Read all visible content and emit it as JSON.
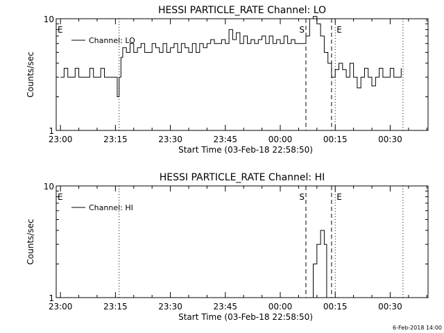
{
  "figure": {
    "footer_date": "6-Feb-2018 14:00"
  },
  "chart_data": [
    {
      "type": "line",
      "title": "HESSI PARTICLE_RATE Channel: LO",
      "xlabel": "Start Time (03-Feb-18 22:58:50)",
      "ylabel": "Counts/sec",
      "yscale": "log",
      "ylim": [
        1,
        10
      ],
      "xlim": [
        "22:58:50",
        "00:40:20"
      ],
      "xticks": [
        "23:00",
        "23:15",
        "23:30",
        "23:45",
        "00:00",
        "00:15",
        "00:30"
      ],
      "yticks": [
        "1",
        "10"
      ],
      "legend": {
        "entries": [
          "Channel: LO"
        ],
        "position": "top-left"
      },
      "markers": [
        {
          "label": "E",
          "time": "22:58:50",
          "style": "dotted"
        },
        {
          "label": "",
          "time": "23:16:00",
          "style": "dotted"
        },
        {
          "label": "S",
          "time": "00:07:00",
          "style": "dashed"
        },
        {
          "label": "",
          "time": "00:14:00",
          "style": "dashed"
        },
        {
          "label": "E",
          "time": "00:15:00",
          "style": "dotted"
        },
        {
          "label": "",
          "time": "00:33:30",
          "style": "dotted"
        }
      ],
      "series": [
        {
          "name": "Channel: LO",
          "x": [
            "23:00",
            "23:01",
            "23:02",
            "23:03",
            "23:04",
            "23:05",
            "23:06",
            "23:07",
            "23:08",
            "23:09",
            "23:10",
            "23:11",
            "23:12",
            "23:13",
            "23:14",
            "23:15",
            "23:15:30",
            "23:16",
            "23:16:30",
            "23:17",
            "23:18",
            "23:19",
            "23:20",
            "23:21",
            "23:22",
            "23:23",
            "23:24",
            "23:25",
            "23:26",
            "23:27",
            "23:28",
            "23:29",
            "23:30",
            "23:31",
            "23:32",
            "23:33",
            "23:34",
            "23:35",
            "23:36",
            "23:37",
            "23:38",
            "23:39",
            "23:40",
            "23:41",
            "23:42",
            "23:43",
            "23:44",
            "23:45",
            "23:46",
            "23:47",
            "23:48",
            "23:49",
            "23:50",
            "23:51",
            "23:52",
            "23:53",
            "23:54",
            "23:55",
            "23:56",
            "23:57",
            "23:58",
            "23:59",
            "00:00",
            "00:01",
            "00:02",
            "00:03",
            "00:04",
            "00:05",
            "00:06",
            "00:07",
            "00:08",
            "00:09",
            "00:10",
            "00:11",
            "00:12",
            "00:13",
            "00:14",
            "00:15",
            "00:16",
            "00:17",
            "00:18",
            "00:19",
            "00:20",
            "00:21",
            "00:22",
            "00:23",
            "00:24",
            "00:25",
            "00:26",
            "00:27",
            "00:28",
            "00:29",
            "00:30",
            "00:31",
            "00:32",
            "00:33"
          ],
          "y": [
            3,
            3.6,
            3,
            3,
            3.6,
            3,
            3,
            3,
            3.6,
            3,
            3,
            3.6,
            3,
            3,
            3,
            3,
            2,
            3,
            4.5,
            5.5,
            5,
            6,
            5,
            5.5,
            6,
            5,
            5,
            6,
            5.5,
            5,
            6,
            5,
            5.5,
            6,
            5,
            6,
            5.5,
            5,
            6,
            5,
            6,
            5.5,
            6,
            6.5,
            6,
            6,
            6.5,
            6,
            8,
            6.5,
            7.5,
            6,
            7,
            6,
            6.5,
            6,
            6.5,
            7,
            6,
            7,
            6,
            6.5,
            6,
            7,
            6,
            6.5,
            6,
            6,
            6,
            7,
            10,
            10.5,
            9,
            7,
            5,
            4,
            3,
            3.5,
            4,
            3.5,
            3,
            4,
            3,
            2.4,
            3,
            3.6,
            3,
            2.5,
            3,
            3.6,
            3,
            3,
            3.6,
            3,
            3,
            3.6
          ]
        }
      ]
    },
    {
      "type": "line",
      "title": "HESSI PARTICLE_RATE Channel: HI",
      "xlabel": "Start Time (03-Feb-18 22:58:50)",
      "ylabel": "Counts/sec",
      "yscale": "log",
      "ylim": [
        1,
        10
      ],
      "xlim": [
        "22:58:50",
        "00:40:20"
      ],
      "xticks": [
        "23:00",
        "23:15",
        "23:30",
        "23:45",
        "00:00",
        "00:15",
        "00:30"
      ],
      "yticks": [
        "1",
        "10"
      ],
      "legend": {
        "entries": [
          "Channel: HI"
        ],
        "position": "top-left"
      },
      "markers": [
        {
          "label": "E",
          "time": "22:58:50",
          "style": "dotted"
        },
        {
          "label": "",
          "time": "23:16:00",
          "style": "dotted"
        },
        {
          "label": "S",
          "time": "00:07:00",
          "style": "dashed"
        },
        {
          "label": "",
          "time": "00:14:00",
          "style": "dashed"
        },
        {
          "label": "E",
          "time": "00:15:00",
          "style": "dotted"
        },
        {
          "label": "",
          "time": "00:33:30",
          "style": "dotted"
        }
      ],
      "series": [
        {
          "name": "Channel: HI",
          "x": [
            "00:08:00",
            "00:09:00",
            "00:10:00",
            "00:11:00",
            "00:12:00",
            "00:12:40"
          ],
          "y": [
            1,
            2,
            3,
            4,
            3,
            1
          ]
        }
      ]
    }
  ]
}
